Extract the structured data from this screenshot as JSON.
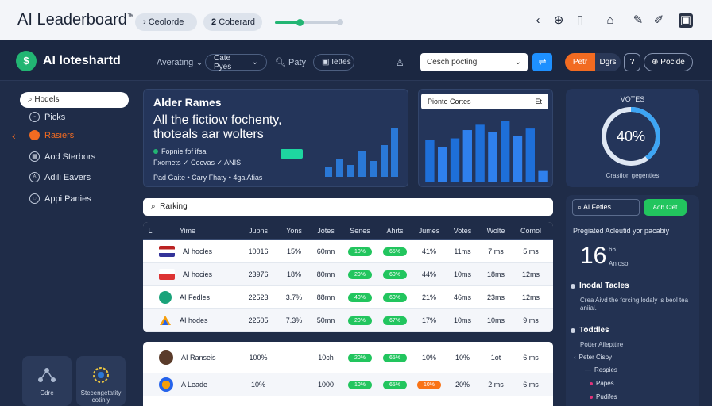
{
  "topbar": {
    "title": "AI Leaderboard",
    "title_mark": "™",
    "pill1": "Ceolorde",
    "pill2": "Coberard",
    "pill2_prefix": "2",
    "slider_progress": 0.38
  },
  "nav": {
    "brand": "AI loteshartd",
    "link1": "Averating",
    "btn1": "Cate Pyes",
    "link2": "Paty",
    "btn2": "Iettes",
    "search_placeholder": "Cesch pocting",
    "orange_btn": "Petr",
    "dark_btn": "Dgrs",
    "help_btn": "?",
    "right_btn": "Pocide"
  },
  "sidebar": {
    "search_placeholder": "Hodels",
    "items": [
      {
        "label": "Picks"
      },
      {
        "label": "Rasiers"
      },
      {
        "label": "Aod Sterbors"
      },
      {
        "label": "Adili Eavers"
      },
      {
        "label": "Appi Panies"
      }
    ],
    "tiles": [
      {
        "label": "Cdre"
      },
      {
        "label": "Stecengetatity cotiniy"
      }
    ]
  },
  "hero": {
    "title": "Alder Rames",
    "headline": "All the fictiow fochenty, thoteals aar wolters",
    "line1": "Fopnie fof ifsa",
    "line2": "Fxomets ✓ Cecvas ✓ ANIS",
    "line3": "Pad Gaite • Cary Fhaty • 4ga Afias"
  },
  "chart_card": {
    "caption": "Pionte Cortes",
    "caption_right": "Et"
  },
  "gauge": {
    "title": "VOTES",
    "value_text": "40%",
    "value": 0.4,
    "footer": "Crastion gegenties"
  },
  "ranking": {
    "label": "Rarking",
    "headers": [
      "Ll",
      "Yime",
      "Jupns",
      "Yons",
      "Jotes",
      "Senes",
      "Ahrts",
      "Jumes",
      "Votes",
      "Wolte",
      "Comol"
    ],
    "rows": [
      {
        "name": "AI hocles",
        "c2": "10016",
        "c3": "15%",
        "c4": "60mn",
        "b1": "10%",
        "b2": "65%",
        "c7": "41%",
        "c8": "11ms",
        "c9": "7 ms",
        "c10": "5 ms"
      },
      {
        "name": "AI hocies",
        "c2": "23976",
        "c3": "18%",
        "c4": "80mn",
        "b1": "20%",
        "b2": "60%",
        "c7": "44%",
        "c8": "10ms",
        "c9": "18ms",
        "c10": "12ms"
      },
      {
        "name": "AI Fedles",
        "c2": "22523",
        "c3": "3.7%",
        "c4": "88mn",
        "b1": "40%",
        "b2": "60%",
        "c7": "21%",
        "c8": "46ms",
        "c9": "23ms",
        "c10": "12ms"
      },
      {
        "name": "AI hodes",
        "c2": "22505",
        "c3": "7.3%",
        "c4": "50mn",
        "b1": "20%",
        "b2": "67%",
        "c7": "17%",
        "c8": "10ms",
        "c9": "10ms",
        "c10": "9 ms"
      }
    ],
    "rows2": [
      {
        "name": "AI Ranseis",
        "c2": "100%",
        "c4": "10ch",
        "b1": "20%",
        "b2": "65%",
        "c7": "10%",
        "c8": "10%",
        "c9": "1ot",
        "c10": "6 ms"
      },
      {
        "name": "A Leade",
        "c2": "10%",
        "c4": "1000",
        "b1": "10%",
        "b2": "65%",
        "b3": "10%",
        "c8": "20%",
        "c9": "2 ms",
        "c10": "6 ms"
      }
    ]
  },
  "right_panel": {
    "btn_a": "Ai Feties",
    "btn_b": "Aob Clet",
    "subtitle": "Pregiated Acleutid yor pacabiy",
    "big": "16",
    "big_unit": "66",
    "big_label": "Aniosol",
    "h1": "Inodal Tacles",
    "p1": "Crea Aivd the forcing lodaly is beol tea aniial.",
    "h2": "Toddles",
    "p2": "Potter Ailepttire",
    "list": [
      "Peter Cispy",
      "Respies",
      "Papes",
      "Pudifes"
    ]
  },
  "chart_data": {
    "type": "bar",
    "categories": [
      "1",
      "2",
      "3",
      "4",
      "5",
      "6",
      "7",
      "8",
      "9",
      "10"
    ],
    "values": [
      55,
      45,
      57,
      68,
      75,
      65,
      80,
      60,
      70,
      14
    ]
  }
}
